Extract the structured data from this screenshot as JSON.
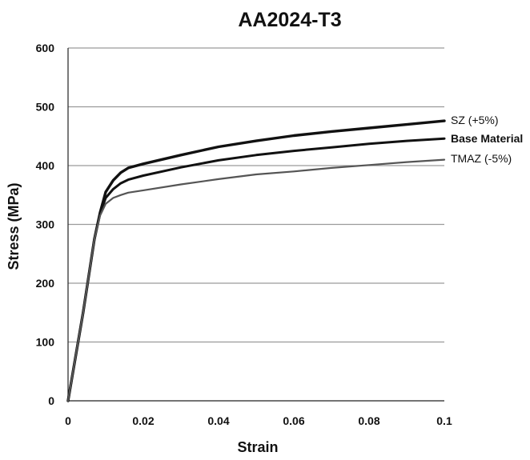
{
  "chart_data": {
    "type": "line",
    "title": "AA2024-T3",
    "xlabel": "Strain",
    "ylabel": "Stress (MPa)",
    "xlim": [
      0,
      0.1
    ],
    "ylim": [
      0,
      600
    ],
    "x_ticks": [
      "0",
      "0.02",
      "0.04",
      "0.06",
      "0.08",
      "0.1"
    ],
    "y_ticks": [
      "0",
      "100",
      "200",
      "300",
      "400",
      "500",
      "600"
    ],
    "grid": true,
    "legend": "labels at right end of lines",
    "series": [
      {
        "name": "SZ (+5%)",
        "color": "#111111",
        "points": [
          [
            0,
            0
          ],
          [
            0.004,
            150
          ],
          [
            0.007,
            275
          ],
          [
            0.0085,
            320
          ],
          [
            0.01,
            355
          ],
          [
            0.012,
            375
          ],
          [
            0.014,
            388
          ],
          [
            0.016,
            396
          ],
          [
            0.02,
            403
          ],
          [
            0.03,
            418
          ],
          [
            0.04,
            432
          ],
          [
            0.05,
            442
          ],
          [
            0.06,
            451
          ],
          [
            0.07,
            458
          ],
          [
            0.08,
            464
          ],
          [
            0.09,
            470
          ],
          [
            0.1,
            476
          ]
        ]
      },
      {
        "name": "Base Material",
        "color": "#111111",
        "points": [
          [
            0,
            0
          ],
          [
            0.004,
            150
          ],
          [
            0.007,
            275
          ],
          [
            0.0085,
            318
          ],
          [
            0.01,
            345
          ],
          [
            0.012,
            360
          ],
          [
            0.014,
            370
          ],
          [
            0.016,
            376
          ],
          [
            0.02,
            383
          ],
          [
            0.03,
            397
          ],
          [
            0.04,
            409
          ],
          [
            0.05,
            418
          ],
          [
            0.06,
            425
          ],
          [
            0.07,
            431
          ],
          [
            0.08,
            437
          ],
          [
            0.09,
            442
          ],
          [
            0.1,
            446
          ]
        ]
      },
      {
        "name": "TMAZ (-5%)",
        "color": "#555555",
        "points": [
          [
            0,
            0
          ],
          [
            0.004,
            150
          ],
          [
            0.007,
            275
          ],
          [
            0.0085,
            315
          ],
          [
            0.01,
            335
          ],
          [
            0.012,
            345
          ],
          [
            0.014,
            350
          ],
          [
            0.016,
            354
          ],
          [
            0.02,
            358
          ],
          [
            0.03,
            368
          ],
          [
            0.04,
            377
          ],
          [
            0.05,
            385
          ],
          [
            0.06,
            390
          ],
          [
            0.07,
            396
          ],
          [
            0.08,
            401
          ],
          [
            0.09,
            406
          ],
          [
            0.1,
            410
          ]
        ]
      }
    ]
  }
}
